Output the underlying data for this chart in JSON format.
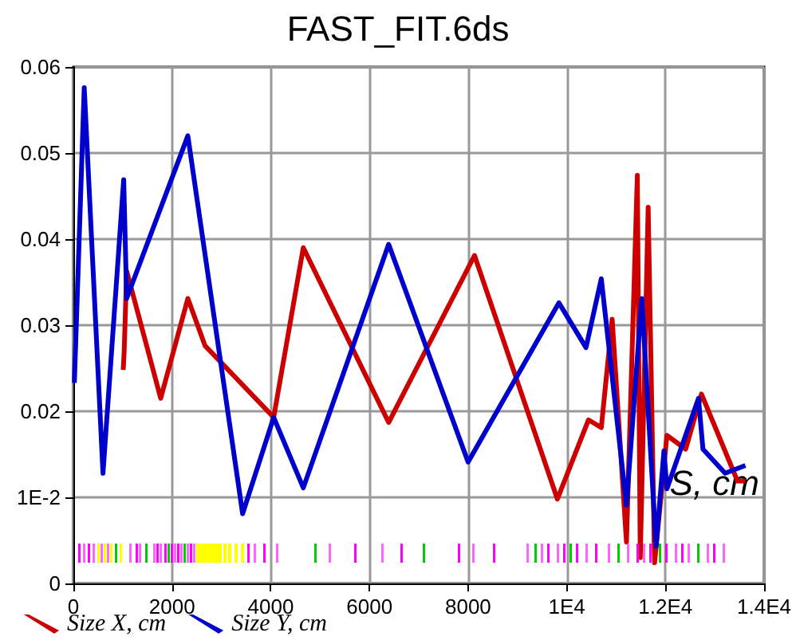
{
  "chart_data": {
    "type": "line",
    "title": "FAST_FIT.6ds",
    "xlabel": "S, cm",
    "xlim": [
      0,
      14000
    ],
    "xticks": [
      0,
      2000,
      4000,
      6000,
      8000,
      {
        "value": 10000,
        "label": "1E4"
      },
      {
        "value": 12000,
        "label": "1.2E4"
      },
      {
        "value": 14000,
        "label": "1.4E4"
      }
    ],
    "ylim": [
      0,
      0.06
    ],
    "yticks": [
      0,
      {
        "value": 0.01,
        "label": "1E-2"
      },
      0.02,
      0.03,
      0.04,
      0.05,
      0.06
    ],
    "grid": true,
    "legend": "bottom left",
    "line_style": "solid",
    "marker": "none",
    "series": [
      {
        "name": "Size X, cm",
        "color": "#cc0000",
        "x": [
          1010,
          1030,
          1080,
          1770,
          2320,
          2670,
          4060,
          4660,
          6390,
          8130,
          9810,
          10440,
          10700,
          10920,
          11210,
          11430,
          11490,
          11650,
          11780,
          12030,
          12410,
          12730,
          13460,
          13620
        ],
        "values": [
          0.0248,
          0.027,
          0.0363,
          0.0215,
          0.0331,
          0.0276,
          0.0193,
          0.039,
          0.0187,
          0.0381,
          0.0098,
          0.019,
          0.0181,
          0.0307,
          0.0048,
          0.0474,
          0.003,
          0.0437,
          0.0024,
          0.0172,
          0.0156,
          0.022,
          0.0119,
          0.0119
        ]
      },
      {
        "name": "Size Y, cm",
        "color": "#0000cc",
        "x": [
          20,
          220,
          600,
          1020,
          1080,
          2320,
          3430,
          4060,
          4660,
          6390,
          8000,
          9840,
          10390,
          10700,
          11210,
          11520,
          11810,
          11970,
          12030,
          12670,
          12760,
          13210,
          13620
        ],
        "values": [
          0.0233,
          0.0576,
          0.0128,
          0.0469,
          0.0331,
          0.052,
          0.0081,
          0.0193,
          0.0111,
          0.0394,
          0.0141,
          0.0326,
          0.0274,
          0.0354,
          0.0091,
          0.0331,
          0.0043,
          0.0154,
          0.011,
          0.0215,
          0.0156,
          0.0128,
          0.0137
        ]
      }
    ]
  }
}
